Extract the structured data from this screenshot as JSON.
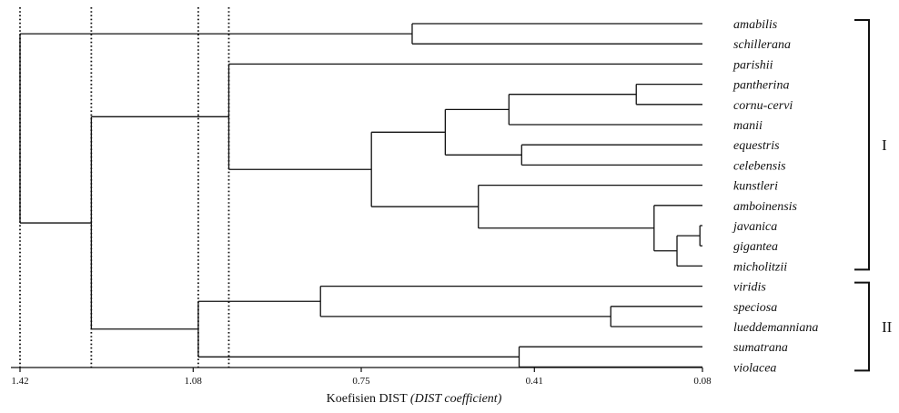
{
  "chart_data": {
    "type": "dendrogram",
    "xlabel_main": "Koefisien  DIST ",
    "xlabel_italic": "(DIST coefficient)",
    "x_ticks": [
      "1.42",
      "1.08",
      "0.75",
      "0.41",
      "0.08"
    ],
    "xlim": [
      1.42,
      0.08
    ],
    "cut_lines": [
      1.42,
      1.28,
      1.07,
      1.01
    ],
    "leaves": [
      "amabilis",
      "schillerana",
      "parishii",
      "pantherina",
      "cornu-cervi",
      "manii",
      "equestris",
      "celebensis",
      "kunstleri",
      "amboinensis",
      "javanica",
      "gigantea",
      "micholitzii",
      "viridis",
      "speciosa",
      "lueddemanniana",
      "sumatrana",
      "violacea"
    ],
    "merges": [
      {
        "id": "m1",
        "height": 0.085,
        "children": [
          "javanica",
          "gigantea"
        ]
      },
      {
        "id": "m2",
        "height": 0.13,
        "children": [
          "m1",
          "micholitzii"
        ]
      },
      {
        "id": "m3",
        "height": 0.175,
        "children": [
          "amboinensis",
          "m2"
        ]
      },
      {
        "id": "m4",
        "height": 0.21,
        "children": [
          "pantherina",
          "cornu-cervi"
        ]
      },
      {
        "id": "m5",
        "height": 0.26,
        "children": [
          "speciosa",
          "lueddemanniana"
        ]
      },
      {
        "id": "m6",
        "height": 0.44,
        "children": [
          "sumatrana",
          "violacea"
        ]
      },
      {
        "id": "m7",
        "height": 0.435,
        "children": [
          "equestris",
          "celebensis"
        ]
      },
      {
        "id": "m8",
        "height": 0.46,
        "children": [
          "m4",
          "manii"
        ]
      },
      {
        "id": "m9",
        "height": 0.52,
        "children": [
          "kunstleri",
          "m3"
        ]
      },
      {
        "id": "m10",
        "height": 0.585,
        "children": [
          "m8",
          "m7"
        ]
      },
      {
        "id": "m11",
        "height": 0.65,
        "children": [
          "amabilis",
          "schillerana"
        ]
      },
      {
        "id": "m12",
        "height": 0.73,
        "children": [
          "m10",
          "m9"
        ]
      },
      {
        "id": "m13",
        "height": 0.83,
        "children": [
          "viridis",
          "m5"
        ]
      },
      {
        "id": "m14",
        "height": 1.01,
        "children": [
          "parishii",
          "m12"
        ]
      },
      {
        "id": "m15",
        "height": 1.07,
        "children": [
          "m13",
          "m6"
        ]
      },
      {
        "id": "m16",
        "height": 1.28,
        "children": [
          "m14",
          "m15"
        ]
      },
      {
        "id": "m17",
        "height": 1.42,
        "children": [
          "m11",
          "m16"
        ]
      }
    ],
    "groups": [
      {
        "label": "I",
        "from": "amabilis",
        "to": "micholitzii"
      },
      {
        "label": "II",
        "from": "viridis",
        "to": "violacea"
      }
    ]
  }
}
